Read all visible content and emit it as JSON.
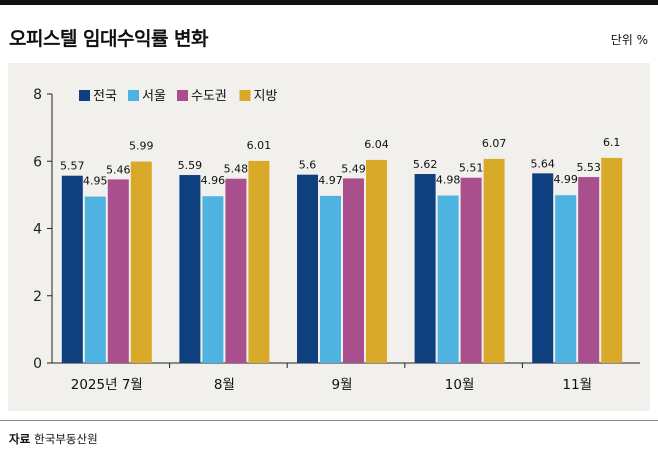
{
  "title": "오피스텔 임대수익률 변화",
  "unit": "단위 %",
  "source_label": "자료",
  "source_text": "한국부동산원",
  "chart_data": {
    "type": "bar",
    "title": "오피스텔 임대수익률 변화",
    "xlabel": "",
    "ylabel": "단위 %",
    "ylim": [
      0,
      8
    ],
    "yticks": [
      0,
      2,
      4,
      6,
      8
    ],
    "grid": false,
    "legend_position": "top-left",
    "categories": [
      "2025년 7월",
      "8월",
      "9월",
      "10월",
      "11월"
    ],
    "series": [
      {
        "name": "전국",
        "color": "#0e3f7e",
        "values": [
          5.57,
          5.59,
          5.6,
          5.62,
          5.64
        ]
      },
      {
        "name": "서울",
        "color": "#4fb3e2",
        "values": [
          4.95,
          4.96,
          4.97,
          4.98,
          4.99
        ]
      },
      {
        "name": "수도권",
        "color": "#a94f8d",
        "values": [
          5.46,
          5.48,
          5.49,
          5.51,
          5.53
        ]
      },
      {
        "name": "지방",
        "color": "#d9a92a",
        "values": [
          5.99,
          6.01,
          6.04,
          6.07,
          6.1
        ]
      }
    ],
    "value_labels": [
      [
        "5.57",
        "5.59",
        "5.6",
        "5.62",
        "5.64"
      ],
      [
        "4.95",
        "4.96",
        "4.97",
        "4.98",
        "4.99"
      ],
      [
        "5.46",
        "5.48",
        "5.49",
        "5.51",
        "5.53"
      ],
      [
        "5.99",
        "6.01",
        "6.04",
        "6.07",
        "6.1"
      ]
    ]
  }
}
